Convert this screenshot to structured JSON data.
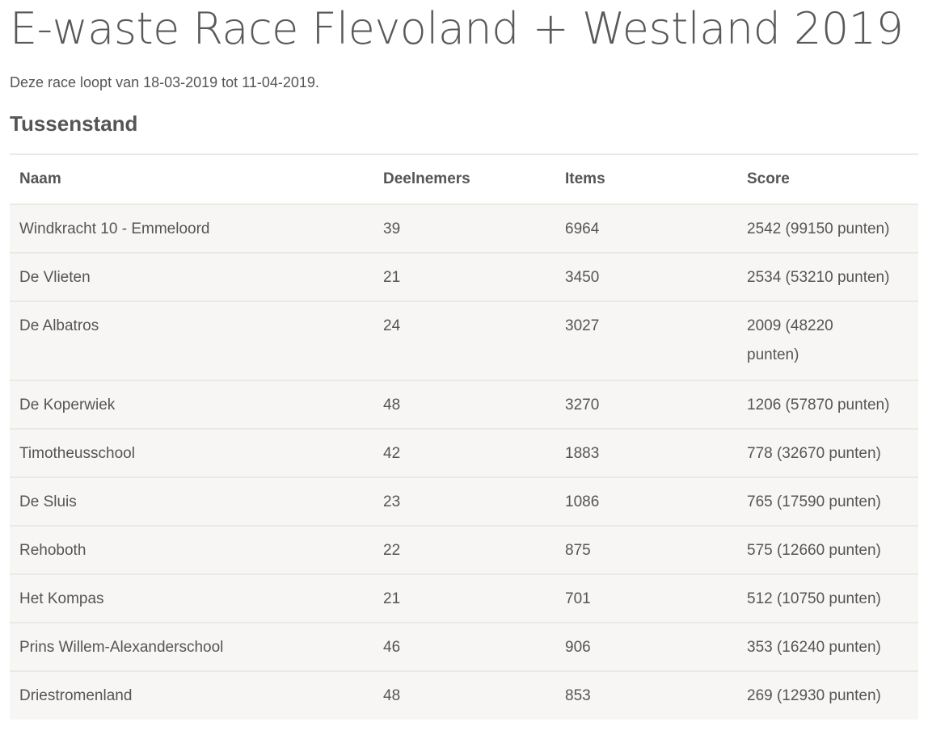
{
  "page": {
    "title": "E-waste Race Flevoland + Westland 2019",
    "subtitle": "Deze race loopt van 18-03-2019 tot 11-04-2019.",
    "section_heading": "Tussenstand"
  },
  "table": {
    "headers": [
      "Naam",
      "Deelnemers",
      "Items",
      "Score"
    ],
    "rows": [
      {
        "naam": "Windkracht 10 - Emmeloord",
        "deelnemers": "39",
        "items": "6964",
        "score": "2542 (99150 punten)"
      },
      {
        "naam": "De Vlieten",
        "deelnemers": "21",
        "items": "3450",
        "score": "2534 (53210 punten)"
      },
      {
        "naam": "De Albatros",
        "deelnemers": "24",
        "items": "3027",
        "score": "2009 (48220 punten)"
      },
      {
        "naam": "De Koperwiek",
        "deelnemers": "48",
        "items": "3270",
        "score": "1206 (57870 punten)"
      },
      {
        "naam": "Timotheusschool",
        "deelnemers": "42",
        "items": "1883",
        "score": "778 (32670 punten)"
      },
      {
        "naam": "De Sluis",
        "deelnemers": "23",
        "items": "1086",
        "score": "765 (17590 punten)"
      },
      {
        "naam": "Rehoboth",
        "deelnemers": "22",
        "items": "875",
        "score": "575 (12660 punten)"
      },
      {
        "naam": "Het Kompas",
        "deelnemers": "21",
        "items": "701",
        "score": "512 (10750 punten)"
      },
      {
        "naam": "Prins Willem-Alexanderschool",
        "deelnemers": "46",
        "items": "906",
        "score": "353 (16240 punten)"
      },
      {
        "naam": "Driestromenland",
        "deelnemers": "48",
        "items": "853",
        "score": "269 (12930 punten)"
      }
    ]
  },
  "colors": {
    "text": "#555555",
    "row_background": "#f7f6f4",
    "border": "#ebe9e4"
  }
}
